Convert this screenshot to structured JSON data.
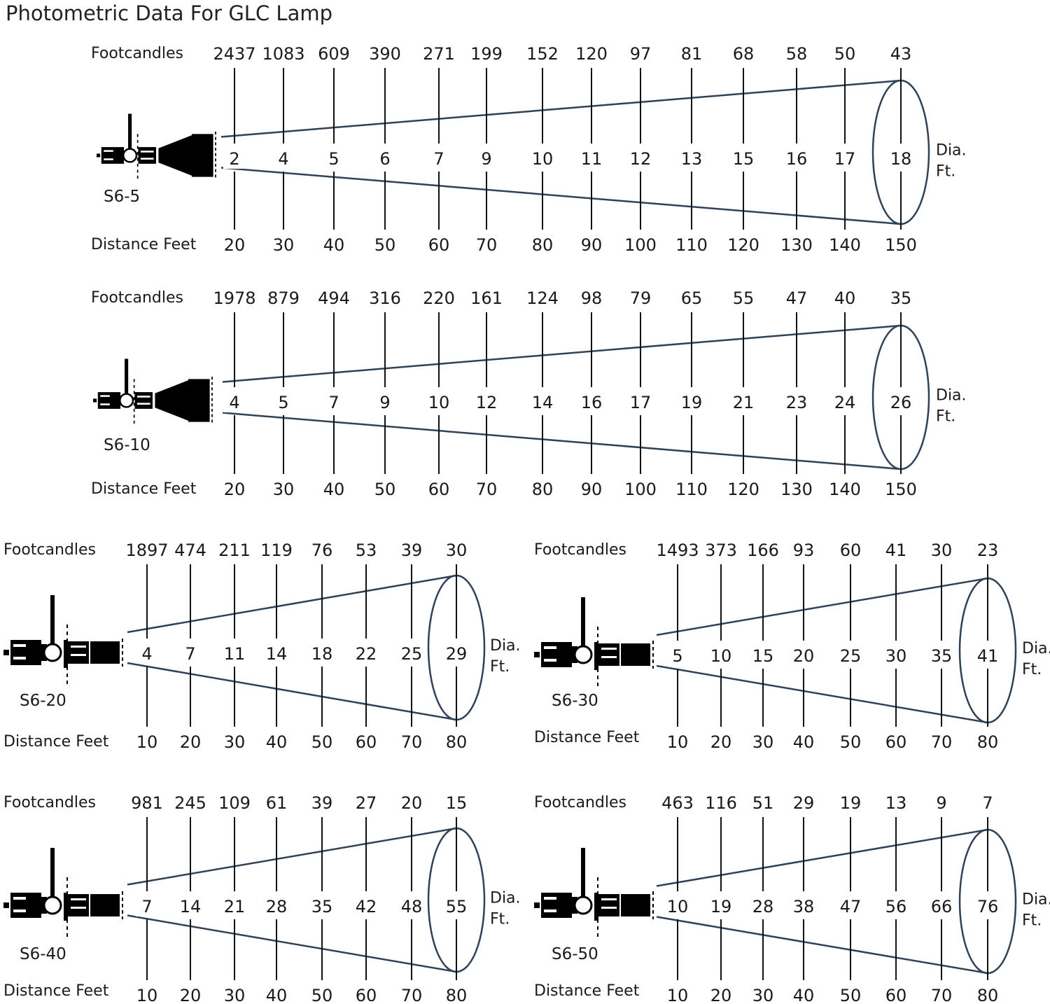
{
  "title": "Photometric Data For GLC Lamp",
  "labels": {
    "footcandles": "Footcandles",
    "distance": "Distance Feet",
    "dia": "Dia.",
    "ft": "Ft."
  },
  "colors": {
    "beam": "#2f4257",
    "text": "#1a1a1a",
    "fixture": "#000000"
  },
  "panels": [
    {
      "model": "S6-5",
      "footcandles": [
        "2437",
        "1083",
        "609",
        "390",
        "271",
        "199",
        "152",
        "120",
        "97",
        "81",
        "68",
        "58",
        "50",
        "43"
      ],
      "diameters": [
        "2",
        "4",
        "5",
        "6",
        "7",
        "9",
        "10",
        "11",
        "12",
        "13",
        "15",
        "16",
        "17",
        "18"
      ],
      "distances": [
        "20",
        "30",
        "40",
        "50",
        "60",
        "70",
        "80",
        "90",
        "100",
        "110",
        "120",
        "130",
        "140",
        "150"
      ]
    },
    {
      "model": "S6-10",
      "footcandles": [
        "1978",
        "879",
        "494",
        "316",
        "220",
        "161",
        "124",
        "98",
        "79",
        "65",
        "55",
        "47",
        "40",
        "35"
      ],
      "diameters": [
        "4",
        "5",
        "7",
        "9",
        "10",
        "12",
        "14",
        "16",
        "17",
        "19",
        "21",
        "23",
        "24",
        "26"
      ],
      "distances": [
        "20",
        "30",
        "40",
        "50",
        "60",
        "70",
        "80",
        "90",
        "100",
        "110",
        "120",
        "130",
        "140",
        "150"
      ]
    },
    {
      "model": "S6-20",
      "footcandles": [
        "1897",
        "474",
        "211",
        "119",
        "76",
        "53",
        "39",
        "30"
      ],
      "diameters": [
        "4",
        "7",
        "11",
        "14",
        "18",
        "22",
        "25",
        "29"
      ],
      "distances": [
        "10",
        "20",
        "30",
        "40",
        "50",
        "60",
        "70",
        "80"
      ]
    },
    {
      "model": "S6-30",
      "footcandles": [
        "1493",
        "373",
        "166",
        "93",
        "60",
        "41",
        "30",
        "23"
      ],
      "diameters": [
        "5",
        "10",
        "15",
        "20",
        "25",
        "30",
        "35",
        "41"
      ],
      "distances": [
        "10",
        "20",
        "30",
        "40",
        "50",
        "60",
        "70",
        "80"
      ]
    },
    {
      "model": "S6-40",
      "footcandles": [
        "981",
        "245",
        "109",
        "61",
        "39",
        "27",
        "20",
        "15"
      ],
      "diameters": [
        "7",
        "14",
        "21",
        "28",
        "35",
        "42",
        "48",
        "55"
      ],
      "distances": [
        "10",
        "20",
        "30",
        "40",
        "50",
        "60",
        "70",
        "80"
      ]
    },
    {
      "model": "S6-50",
      "footcandles": [
        "463",
        "116",
        "51",
        "29",
        "19",
        "13",
        "9",
        "7"
      ],
      "diameters": [
        "10",
        "19",
        "28",
        "38",
        "47",
        "56",
        "66",
        "76"
      ],
      "distances": [
        "10",
        "20",
        "30",
        "40",
        "50",
        "60",
        "70",
        "80"
      ]
    }
  ]
}
